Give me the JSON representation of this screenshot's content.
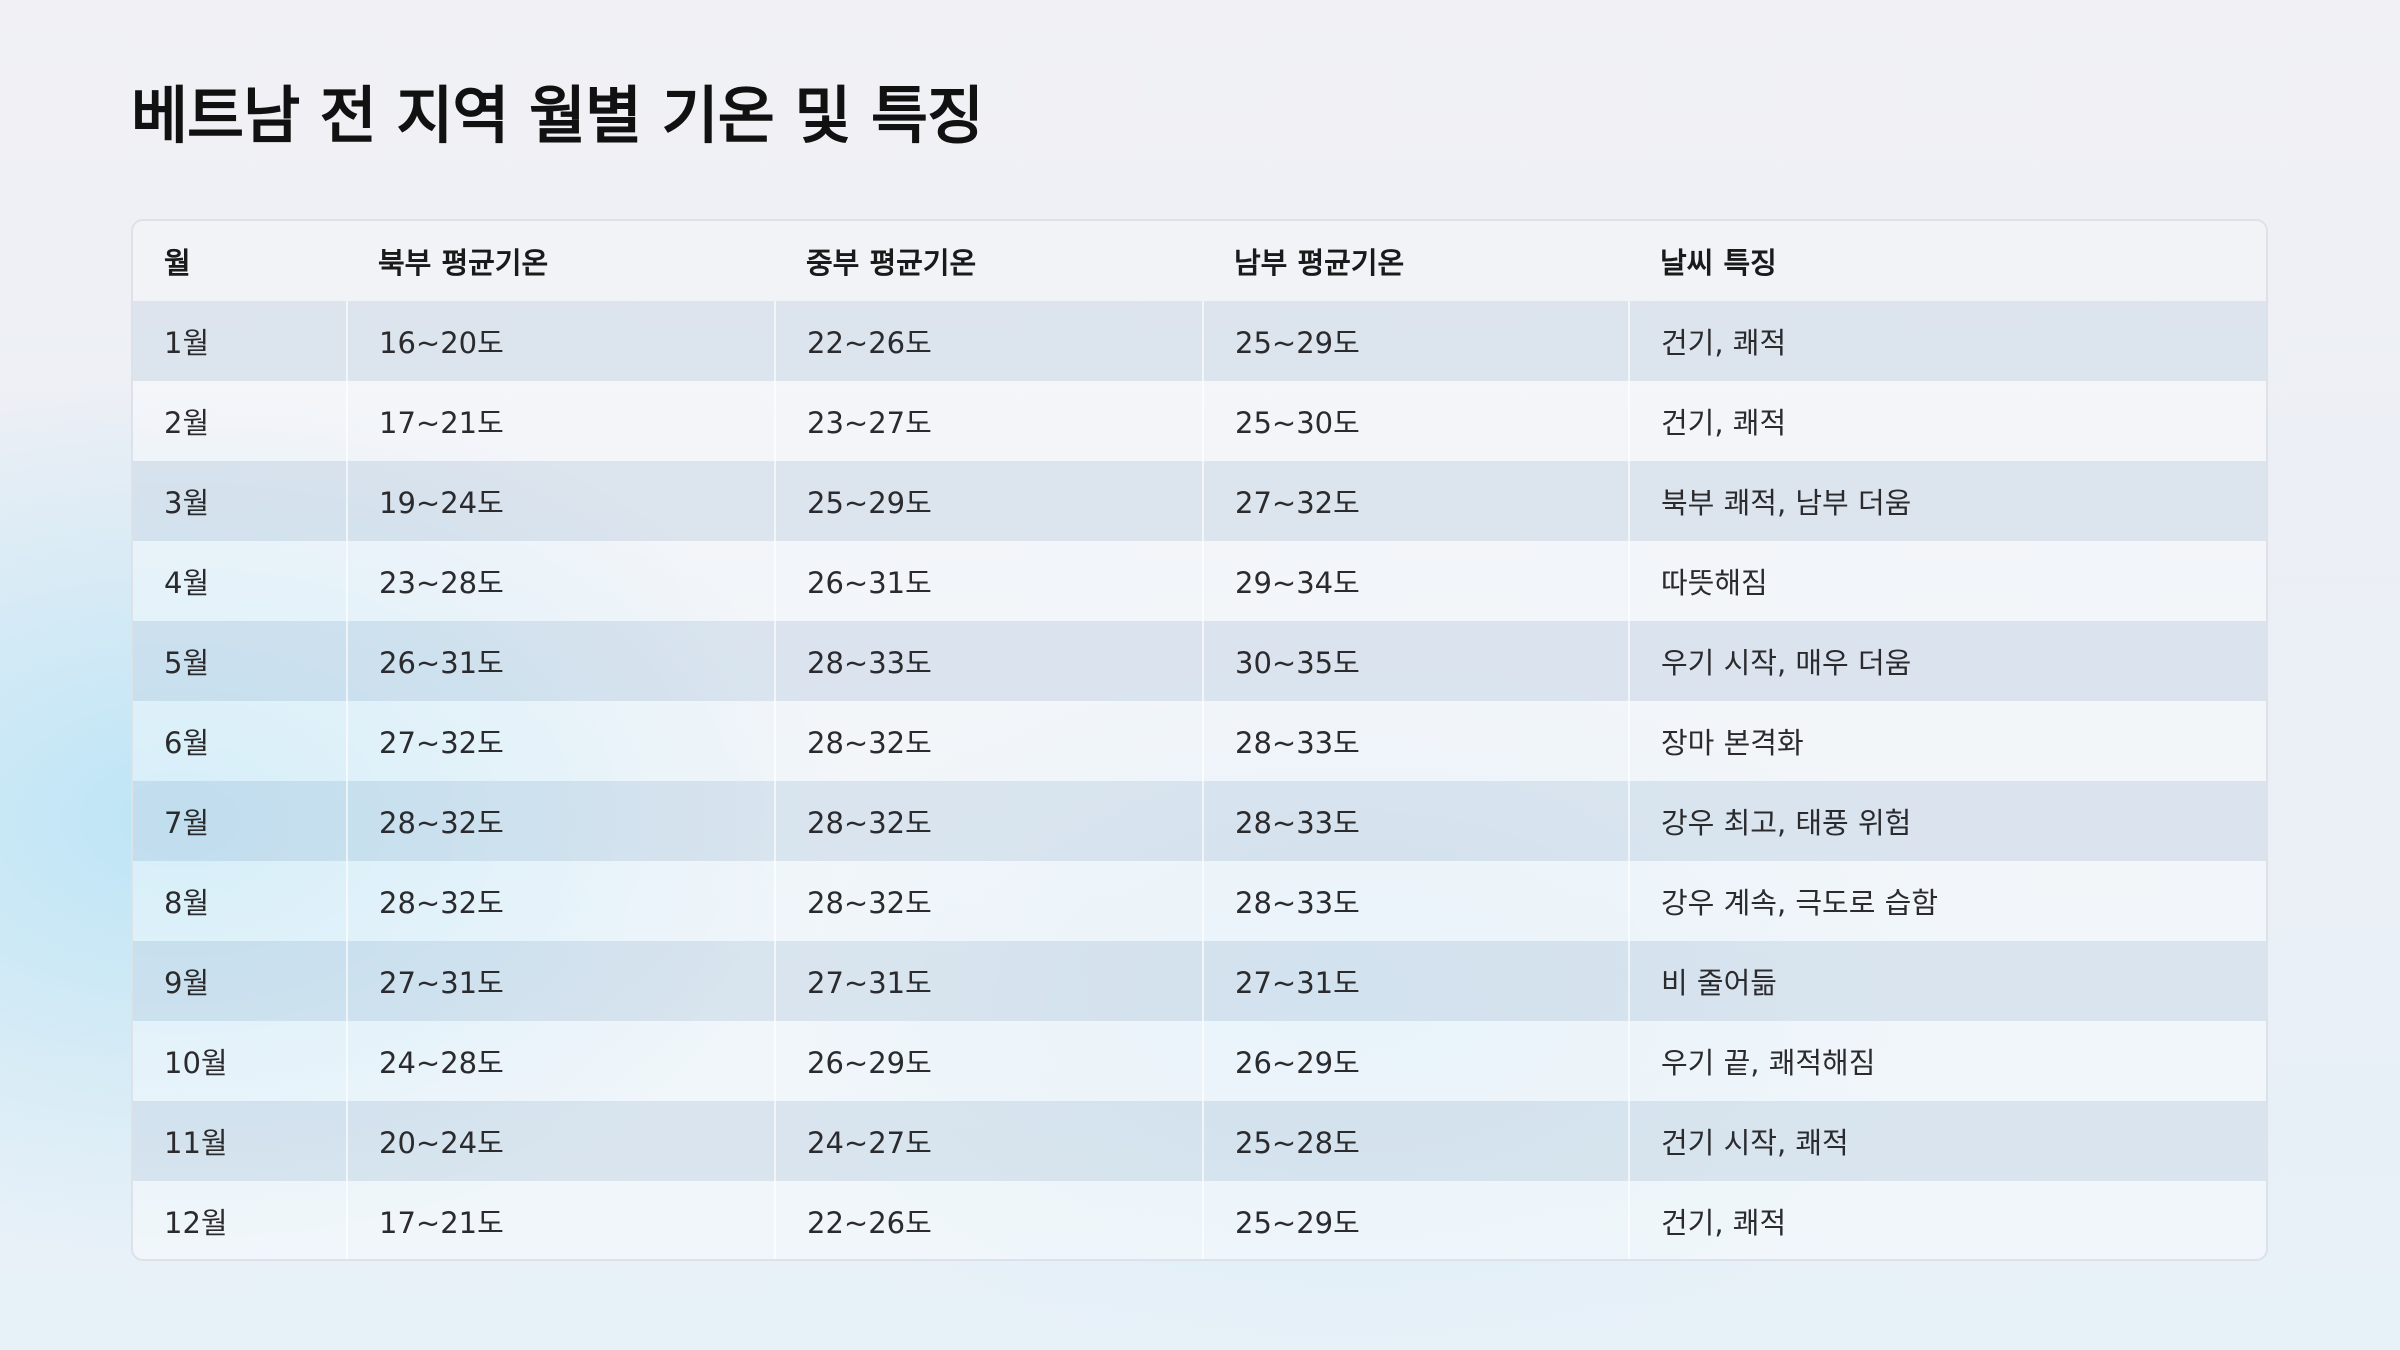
{
  "page": {
    "title": "베트남 전 지역 월별 기온 및 특징"
  },
  "table": {
    "columns": [
      "월",
      "북부 평균기온",
      "중부 평균기온",
      "남부 평균기온",
      "날씨 특징"
    ],
    "rows": [
      [
        "1월",
        "16~20도",
        "22~26도",
        "25~29도",
        "건기, 쾌적"
      ],
      [
        "2월",
        "17~21도",
        "23~27도",
        "25~30도",
        "건기, 쾌적"
      ],
      [
        "3월",
        "19~24도",
        "25~29도",
        "27~32도",
        "북부 쾌적, 남부 더움"
      ],
      [
        "4월",
        "23~28도",
        "26~31도",
        "29~34도",
        "따뜻해짐"
      ],
      [
        "5월",
        "26~31도",
        "28~33도",
        "30~35도",
        "우기 시작, 매우 더움"
      ],
      [
        "6월",
        "27~32도",
        "28~32도",
        "28~33도",
        "장마 본격화"
      ],
      [
        "7월",
        "28~32도",
        "28~32도",
        "28~33도",
        "강우 최고, 태풍 위험"
      ],
      [
        "8월",
        "28~32도",
        "28~32도",
        "28~33도",
        "강우 계속, 극도로 습함"
      ],
      [
        "9월",
        "27~31도",
        "27~31도",
        "27~31도",
        "비 줄어듦"
      ],
      [
        "10월",
        "24~28도",
        "26~29도",
        "26~29도",
        "우기 끝, 쾌적해짐"
      ],
      [
        "11월",
        "20~24도",
        "24~27도",
        "25~28도",
        "건기 시작, 쾌적"
      ],
      [
        "12월",
        "17~21도",
        "22~26도",
        "25~29도",
        "건기, 쾌적"
      ]
    ]
  },
  "colors": {
    "title": "#111111",
    "text": "#2b2b2e",
    "row_alt": "#d8dfe8",
    "accent_glow": "#bae4f6"
  }
}
